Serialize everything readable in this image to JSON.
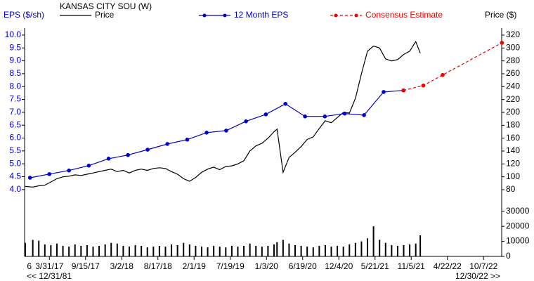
{
  "chart_data": {
    "type": "line",
    "title": "KANSAS CITY SOU (W)",
    "y_label": "EPS ($/sh)",
    "y2_label": "Price ($)",
    "annotations": [
      "<< 12/31/81",
      "12/30/22 >>"
    ],
    "xlim": [
      "12/6/16",
      "12/30/22"
    ],
    "xticks": [
      {
        "value": "10/14/16",
        "label": "6"
      },
      "3/31/17",
      "9/15/17",
      "3/2/18",
      "8/17/18",
      "2/1/19",
      "7/19/19",
      "1/3/20",
      "6/19/20",
      "12/4/20",
      "5/21/21",
      "11/5/21",
      "4/22/22",
      "10/7/22"
    ],
    "ylim": [
      3.45,
      10.27
    ],
    "yticks": [
      {
        "value": 4,
        "label": "4.0"
      },
      4.5,
      {
        "value": 5,
        "label": "5.0"
      },
      5.5,
      {
        "value": 6,
        "label": "6.0"
      },
      6.5,
      {
        "value": 7,
        "label": "7.0"
      },
      7.5,
      {
        "value": 8,
        "label": "8.0"
      },
      8.5,
      {
        "value": 9,
        "label": "9.0"
      },
      9.5,
      {
        "value": 10,
        "label": "10.0"
      }
    ],
    "y2lim": [
      58.2,
      330.9
    ],
    "y2ticks": [
      80,
      100,
      120,
      140,
      160,
      180,
      200,
      220,
      240,
      260,
      280,
      300,
      320
    ],
    "series": [
      {
        "name": "Price",
        "color": "#000000",
        "axis": "y2",
        "x": [
          "12/9/16",
          "1/13/17",
          "2/10/17",
          "3/10/17",
          "4/7/17",
          "5/5/17",
          "6/2/17",
          "6/30/17",
          "7/28/17",
          "8/25/17",
          "9/22/17",
          "10/20/17",
          "11/17/17",
          "12/15/17",
          "1/12/18",
          "2/9/18",
          "3/9/18",
          "4/6/18",
          "5/4/18",
          "6/1/18",
          "6/29/18",
          "7/27/18",
          "8/24/18",
          "9/21/18",
          "10/19/18",
          "11/16/18",
          "12/14/18",
          "1/11/19",
          "2/8/19",
          "3/8/19",
          "4/5/19",
          "5/3/19",
          "5/31/19",
          "6/28/19",
          "7/26/19",
          "8/23/19",
          "9/20/19",
          "10/18/19",
          "11/15/19",
          "12/13/19",
          "1/10/20",
          "2/7/20",
          "2/21/20",
          "3/20/20",
          "4/17/20",
          "5/15/20",
          "6/12/20",
          "7/10/20",
          "8/7/20",
          "9/4/20",
          "10/2/20",
          "10/30/20",
          "11/27/20",
          "12/25/20",
          "1/22/21",
          "2/19/21",
          "3/19/21",
          "4/16/21",
          "5/14/21",
          "6/11/21",
          "7/9/21",
          "8/6/21",
          "9/3/21",
          "10/1/21",
          "10/29/21",
          "11/26/21",
          "12/17/21"
        ],
        "values": [
          85,
          84,
          86,
          87,
          92,
          97,
          100,
          101,
          103,
          102,
          104,
          106,
          108,
          110,
          112,
          108,
          110,
          106,
          110,
          112,
          110,
          113,
          114,
          113,
          108,
          104,
          97,
          93,
          99,
          107,
          112,
          115,
          111,
          116,
          117,
          120,
          125,
          140,
          148,
          152,
          160,
          170,
          174,
          107,
          130,
          138,
          147,
          158,
          162,
          175,
          187,
          184,
          192,
          200,
          199,
          222,
          260,
          295,
          303,
          300,
          283,
          280,
          282,
          290,
          295,
          310,
          292
        ]
      },
      {
        "name": "12 Month EPS",
        "color": "#0000cc",
        "markers": true,
        "x": [
          "12/31/16",
          "3/31/17",
          "6/30/17",
          "9/30/17",
          "12/31/17",
          "3/31/18",
          "6/30/18",
          "9/30/18",
          "12/31/18",
          "3/31/19",
          "6/30/19",
          "9/30/19",
          "12/31/19",
          "3/31/20",
          "6/30/20",
          "9/30/20",
          "12/31/20",
          "3/31/21",
          "6/30/21",
          "9/30/21"
        ],
        "values": [
          4.46,
          4.6,
          4.74,
          4.93,
          5.2,
          5.34,
          5.55,
          5.77,
          5.94,
          6.21,
          6.29,
          6.65,
          6.92,
          7.33,
          6.84,
          6.84,
          6.95,
          6.89,
          7.79,
          7.85
        ]
      },
      {
        "name": "Consensus Estimate",
        "color": "#ee0000",
        "markers": true,
        "dash": true,
        "x": [
          "9/30/21",
          "12/31/21",
          "3/31/22",
          "12/31/22"
        ],
        "values": [
          7.85,
          8.04,
          8.45,
          9.7
        ]
      }
    ],
    "volume": {
      "color": "#000000",
      "ylim": [
        0,
        35000
      ],
      "yticks": [
        0,
        10000,
        20000,
        30000
      ],
      "values": [
        9000,
        11000,
        10500,
        8000,
        7500,
        8500,
        7000,
        6500,
        8000,
        7000,
        7500,
        6500,
        7000,
        8000,
        9000,
        8500,
        7000,
        6500,
        7500,
        7000,
        6000,
        6500,
        7000,
        6500,
        8000,
        7500,
        9000,
        8000,
        7000,
        6500,
        6000,
        7000,
        6500,
        6000,
        7000,
        6500,
        7000,
        8500,
        7000,
        6500,
        7000,
        8000,
        9500,
        11000,
        8500,
        7500,
        7000,
        6500,
        6000,
        7000,
        7500,
        6500,
        7000,
        6500,
        8000,
        9000,
        10000,
        12000,
        20000,
        11000,
        9000,
        7500,
        7000,
        7500,
        8000,
        8500,
        14000
      ]
    }
  }
}
